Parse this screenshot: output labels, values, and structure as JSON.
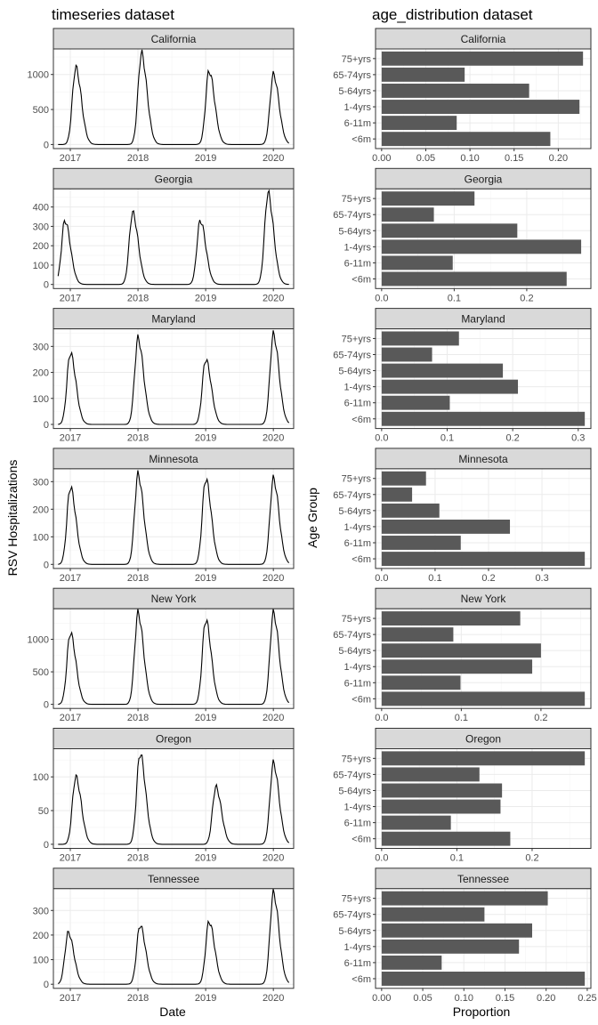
{
  "titles": {
    "left": "timeseries dataset",
    "right": "age_distribution dataset"
  },
  "axes": {
    "left_ylabel": "RSV Hospitalizations",
    "left_xlabel": "Date",
    "right_ylabel": "Age Group",
    "right_xlabel": "Proportion"
  },
  "colors": {
    "bar": "#595959",
    "line": "#000000",
    "strip_bg": "#d9d9d9",
    "grid_major": "#ebebeb",
    "grid_minor": "#f4f4f4",
    "panel_border": "#333333"
  },
  "chart_data": [
    {
      "type": "line",
      "x_ticks": [
        2017,
        2018,
        2019,
        2020
      ],
      "xlim": [
        2016.75,
        2020.3
      ],
      "panels": [
        {
          "state": "California",
          "ylim": [
            0,
            1300
          ],
          "y_ticks": [
            0,
            500,
            1000
          ],
          "peaks": [
            {
              "center": 2017.08,
              "height": 1100
            },
            {
              "center": 2018.05,
              "height": 1300
            },
            {
              "center": 2019.05,
              "height": 1050
            },
            {
              "center": 2020.0,
              "height": 1000
            }
          ]
        },
        {
          "state": "Georgia",
          "ylim": [
            0,
            470
          ],
          "y_ticks": [
            0,
            100,
            200,
            300,
            400
          ],
          "peaks": [
            {
              "center": 2016.92,
              "height": 330
            },
            {
              "center": 2017.92,
              "height": 370
            },
            {
              "center": 2018.92,
              "height": 330
            },
            {
              "center": 2019.92,
              "height": 470
            }
          ]
        },
        {
          "state": "Maryland",
          "ylim": [
            0,
            350
          ],
          "y_ticks": [
            0,
            100,
            200,
            300
          ],
          "peaks": [
            {
              "center": 2017.0,
              "height": 275
            },
            {
              "center": 2018.0,
              "height": 330
            },
            {
              "center": 2019.0,
              "height": 250
            },
            {
              "center": 2020.0,
              "height": 345
            }
          ]
        },
        {
          "state": "Minnesota",
          "ylim": [
            0,
            330
          ],
          "y_ticks": [
            0,
            100,
            200,
            300
          ],
          "peaks": [
            {
              "center": 2017.0,
              "height": 280
            },
            {
              "center": 2018.0,
              "height": 325
            },
            {
              "center": 2019.0,
              "height": 310
            },
            {
              "center": 2020.0,
              "height": 310
            }
          ]
        },
        {
          "state": "New York",
          "ylim": [
            0,
            1400
          ],
          "y_ticks": [
            0,
            500,
            1000
          ],
          "peaks": [
            {
              "center": 2017.0,
              "height": 1100
            },
            {
              "center": 2018.0,
              "height": 1400
            },
            {
              "center": 2019.0,
              "height": 1300
            },
            {
              "center": 2020.0,
              "height": 1400
            }
          ]
        },
        {
          "state": "Oregon",
          "ylim": [
            0,
            135
          ],
          "y_ticks": [
            0,
            50,
            100
          ],
          "peaks": [
            {
              "center": 2017.08,
              "height": 100
            },
            {
              "center": 2018.03,
              "height": 135
            },
            {
              "center": 2019.15,
              "height": 85
            },
            {
              "center": 2020.0,
              "height": 120
            }
          ]
        },
        {
          "state": "Tennessee",
          "ylim": [
            0,
            370
          ],
          "y_ticks": [
            0,
            100,
            200,
            300
          ],
          "peaks": [
            {
              "center": 2016.97,
              "height": 210
            },
            {
              "center": 2018.03,
              "height": 240
            },
            {
              "center": 2019.05,
              "height": 255
            },
            {
              "center": 2020.0,
              "height": 370
            }
          ]
        }
      ]
    },
    {
      "type": "bar",
      "orientation": "horizontal",
      "categories": [
        "75+yrs",
        "65-74yrs",
        "5-64yrs",
        "1-4yrs",
        "6-11m",
        "<6m"
      ],
      "panels": [
        {
          "state": "California",
          "xlim": [
            0,
            0.23
          ],
          "x_ticks": [
            0.0,
            0.05,
            0.1,
            0.15,
            0.2
          ],
          "x_tick_labels": [
            "0.00",
            "0.05",
            "0.10",
            "0.15",
            "0.20"
          ],
          "values": [
            0.228,
            0.094,
            0.167,
            0.224,
            0.085,
            0.191
          ]
        },
        {
          "state": "Georgia",
          "xlim": [
            0,
            0.28
          ],
          "x_ticks": [
            0.0,
            0.1,
            0.2
          ],
          "x_tick_labels": [
            "0.0",
            "0.1",
            "0.2"
          ],
          "values": [
            0.128,
            0.072,
            0.187,
            0.275,
            0.098,
            0.255
          ]
        },
        {
          "state": "Maryland",
          "xlim": [
            0,
            0.31
          ],
          "x_ticks": [
            0.0,
            0.1,
            0.2,
            0.3
          ],
          "x_tick_labels": [
            "0.0",
            "0.1",
            "0.2",
            "0.3"
          ],
          "values": [
            0.118,
            0.077,
            0.185,
            0.208,
            0.104,
            0.31
          ]
        },
        {
          "state": "Minnesota",
          "xlim": [
            0,
            0.38
          ],
          "x_ticks": [
            0.0,
            0.1,
            0.2,
            0.3
          ],
          "x_tick_labels": [
            "0.0",
            "0.1",
            "0.2",
            "0.3"
          ],
          "values": [
            0.083,
            0.057,
            0.108,
            0.24,
            0.148,
            0.38
          ]
        },
        {
          "state": "New York",
          "xlim": [
            0,
            0.255
          ],
          "x_ticks": [
            0.0,
            0.1,
            0.2
          ],
          "x_tick_labels": [
            "0.0",
            "0.1",
            "0.2"
          ],
          "values": [
            0.174,
            0.09,
            0.2,
            0.189,
            0.099,
            0.255
          ]
        },
        {
          "state": "Oregon",
          "xlim": [
            0,
            0.27
          ],
          "x_ticks": [
            0.0,
            0.1,
            0.2
          ],
          "x_tick_labels": [
            "0.0",
            "0.1",
            "0.2"
          ],
          "values": [
            0.27,
            0.13,
            0.16,
            0.158,
            0.092,
            0.171
          ]
        },
        {
          "state": "Tennessee",
          "xlim": [
            0,
            0.247
          ],
          "x_ticks": [
            0.0,
            0.05,
            0.1,
            0.15,
            0.2,
            0.25
          ],
          "x_tick_labels": [
            "0.00",
            "0.05",
            "0.10",
            "0.15",
            "0.20",
            "0.25"
          ],
          "values": [
            0.202,
            0.125,
            0.183,
            0.167,
            0.073,
            0.247
          ]
        }
      ]
    }
  ]
}
